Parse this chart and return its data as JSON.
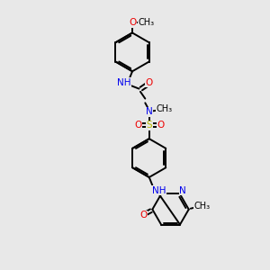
{
  "background_color": "#e8e8e8",
  "bond_color": "#000000",
  "bond_width": 1.4,
  "atom_colors": {
    "N": "#0000ee",
    "O": "#ee0000",
    "S": "#bbbb00",
    "C": "#000000"
  },
  "font_size": 7.5,
  "fig_size": [
    3.0,
    3.0
  ],
  "dpi": 100,
  "xlim": [
    0,
    10
  ],
  "ylim": [
    0,
    10
  ]
}
